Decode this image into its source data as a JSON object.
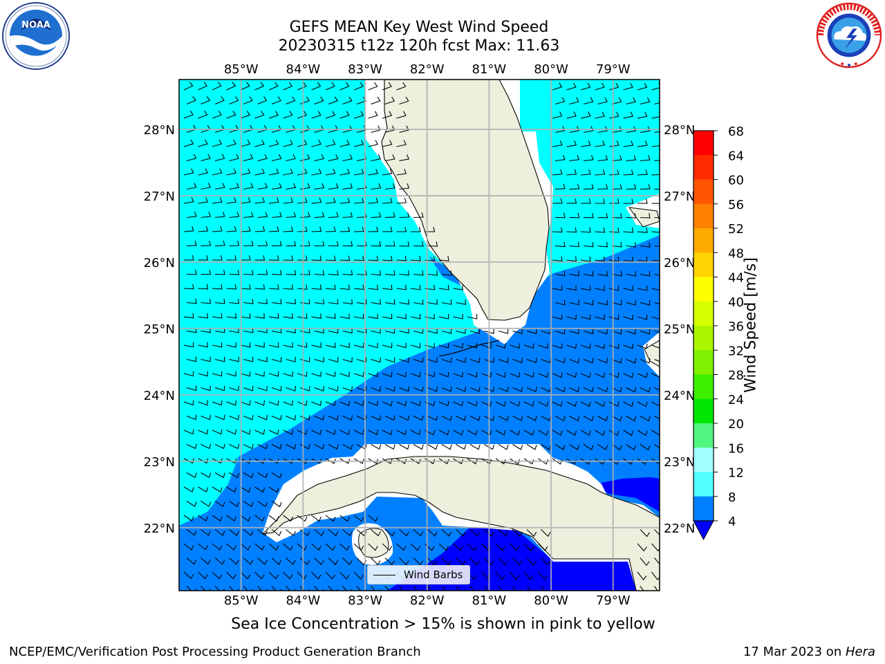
{
  "title_line1": "GEFS MEAN Key West Wind Speed",
  "title_line2": "20230315 t12z 120h fcst   Max: 11.63",
  "subtitle": "Sea Ice Concentration > 15% is shown in pink to yellow",
  "footer_left": "NCEP/EMC/Verification Post Processing Product Generation Branch",
  "footer_date": "17 Mar 2023 on ",
  "footer_host": "Hera",
  "legend_label": "Wind Barbs",
  "colorbar": {
    "title": "Wind Speed [m/s]",
    "ticks": [
      "68",
      "64",
      "60",
      "56",
      "52",
      "48",
      "44",
      "40",
      "36",
      "32",
      "28",
      "24",
      "20",
      "16",
      "12",
      "8",
      "4"
    ],
    "colors": [
      "#ff0000",
      "#ff2a00",
      "#ff5500",
      "#ff8000",
      "#ffaa00",
      "#ffd400",
      "#ffff00",
      "#d4ff00",
      "#aaf500",
      "#7ff000",
      "#3df000",
      "#00e600",
      "#50f580",
      "#a0ffff",
      "#50ffff",
      "#00ffff",
      "#0080ff"
    ],
    "under_color": "#0000ff"
  },
  "map": {
    "lon_labels": [
      "85°W",
      "84°W",
      "83°W",
      "82°W",
      "81°W",
      "80°W",
      "79°W"
    ],
    "lat_labels": [
      "28°N",
      "27°N",
      "26°N",
      "25°N",
      "24°N",
      "23°N",
      "22°N"
    ],
    "lon_range": [
      -86.0,
      -78.25
    ],
    "lat_range": [
      21.05,
      28.75
    ],
    "colors": {
      "land": "#efefde",
      "speed_8_12": "#00ffff",
      "speed_4_8": "#0080ff",
      "speed_below_4": "#0000ff",
      "grid": "#b0b0b0"
    }
  },
  "logos": {
    "left": "noaa-logo",
    "right": "national-weather-service-logo"
  }
}
